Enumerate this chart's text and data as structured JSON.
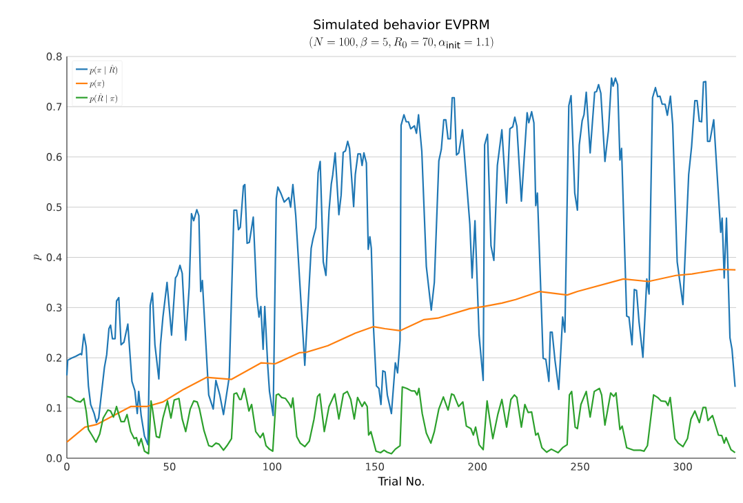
{
  "chart_data": {
    "type": "line",
    "title": "Simulated behavior EVPRM",
    "subtitle": "(N = 100, \\beta = 5, R_0 = 70, \\alpha_{\\mathrm{init}} = 1.1)",
    "xlabel": "Trial No.",
    "ylabel": "p",
    "xlim": [
      0,
      326
    ],
    "ylim": [
      0,
      0.8
    ],
    "xticks": [
      0,
      50,
      100,
      150,
      200,
      250,
      300
    ],
    "yticks": [
      {
        "value": 0,
        "label": "0.0"
      },
      0.1,
      0.2,
      0.3,
      0.4,
      0.5,
      0.6,
      0.7,
      0.8
    ],
    "grid": "y",
    "legend": "top left",
    "line_style": "solid",
    "marker": "none",
    "series": [
      {
        "name": "p(\\pi \\mid \\hat{R})",
        "color": "#1f77b4",
        "x": [
          0,
          0.4,
          2.1,
          4.4,
          6.6,
          7.2,
          8.3,
          9.4,
          10.5,
          11.6,
          13.3,
          14.4,
          15.5,
          18.3,
          19.4,
          20.5,
          21.3,
          22.2,
          23.5,
          24.2,
          25.3,
          26.4,
          27.8,
          29.7,
          31.7,
          33.1,
          34.3,
          35,
          36.2,
          37.8,
          39.5,
          40.6,
          41.7,
          42.9,
          44.8,
          45.6,
          46.8,
          48.8,
          51,
          52.9,
          53.7,
          55.1,
          56.2,
          57.9,
          59.6,
          60.7,
          61.8,
          63.3,
          64.3,
          65.2,
          66,
          69.1,
          71.3,
          72.6,
          74.5,
          76.3,
          79.1,
          81.4,
          82.7,
          83.6,
          84.5,
          86,
          86.7,
          87.8,
          88.9,
          90.8,
          92.5,
          93.6,
          94.5,
          95.6,
          96.4,
          97.9,
          98.7,
          100.5,
          102,
          102.8,
          104.2,
          105.9,
          108.1,
          109,
          110.1,
          111.5,
          115.9,
          119,
          119.9,
          121.3,
          122.4,
          123.4,
          124.9,
          126.2,
          127.7,
          128.8,
          129.5,
          130.7,
          132.5,
          133.6,
          134.6,
          135.7,
          136.8,
          137.7,
          139.7,
          140.5,
          141.8,
          143,
          143.8,
          144.7,
          145.9,
          146.8,
          147.6,
          148.3,
          149.4,
          150.8,
          152,
          153,
          153.9,
          155,
          156.1,
          158.1,
          160,
          161.1,
          162.3,
          162.8,
          164.2,
          165.3,
          166.4,
          167.5,
          169.3,
          170.3,
          171.3,
          172.9,
          175.1,
          177.5,
          179,
          181.2,
          182.4,
          183.6,
          184.6,
          185.7,
          186.8,
          187.7,
          188.7,
          189.8,
          190.9,
          192.7,
          196.3,
          197.4,
          198.8,
          200.8,
          202.8,
          203.5,
          204.9,
          206.6,
          208,
          209.7,
          211.9,
          214.2,
          215.8,
          217.2,
          218.2,
          219.2,
          221.4,
          224.2,
          225,
          226.4,
          227.5,
          228.4,
          229.2,
          232,
          233.3,
          234.8,
          235.5,
          236.4,
          237.8,
          239.6,
          241.5,
          242.6,
          244.5,
          245.6,
          247.4,
          248.7,
          249.6,
          251,
          251.9,
          253,
          254.9,
          257.1,
          258,
          259,
          260.1,
          262.1,
          263.8,
          265.3,
          266.1,
          267.2,
          268.3,
          269.4,
          270.2,
          272.7,
          273.8,
          275.3,
          276.4,
          277.5,
          278.7,
          280.6,
          282.5,
          283.6,
          285.3,
          286.7,
          287.8,
          288.9,
          290,
          291.4,
          292.5,
          294,
          295.1,
          297.3,
          300.1,
          302.9,
          304.3,
          305.9,
          307,
          308.1,
          309.2,
          310.1,
          311.2,
          312.1,
          313.2,
          315.1,
          318.5,
          319.2,
          320.2,
          321.3,
          323,
          324,
          325.5
        ],
        "values": [
          0.165,
          0.195,
          0.199,
          0.203,
          0.208,
          0.206,
          0.247,
          0.222,
          0.144,
          0.107,
          0.089,
          0.071,
          0.08,
          0.181,
          0.206,
          0.258,
          0.265,
          0.238,
          0.238,
          0.313,
          0.32,
          0.226,
          0.231,
          0.267,
          0.153,
          0.135,
          0.089,
          0.133,
          0.085,
          0.044,
          0.027,
          0.304,
          0.329,
          0.226,
          0.158,
          0.226,
          0.281,
          0.35,
          0.245,
          0.359,
          0.364,
          0.384,
          0.368,
          0.235,
          0.341,
          0.487,
          0.473,
          0.495,
          0.483,
          0.332,
          0.354,
          0.126,
          0.098,
          0.155,
          0.126,
          0.087,
          0.162,
          0.494,
          0.494,
          0.455,
          0.46,
          0.542,
          0.545,
          0.428,
          0.43,
          0.48,
          0.322,
          0.281,
          0.302,
          0.217,
          0.302,
          0.181,
          0.133,
          0.085,
          0.517,
          0.54,
          0.528,
          0.51,
          0.519,
          0.5,
          0.545,
          0.483,
          0.185,
          0.418,
          0.437,
          0.459,
          0.569,
          0.591,
          0.391,
          0.364,
          0.492,
          0.546,
          0.564,
          0.608,
          0.485,
          0.524,
          0.609,
          0.612,
          0.631,
          0.617,
          0.501,
          0.565,
          0.606,
          0.606,
          0.583,
          0.608,
          0.588,
          0.416,
          0.441,
          0.418,
          0.258,
          0.144,
          0.139,
          0.107,
          0.174,
          0.172,
          0.126,
          0.089,
          0.19,
          0.17,
          0.235,
          0.663,
          0.684,
          0.67,
          0.67,
          0.656,
          0.662,
          0.647,
          0.684,
          0.611,
          0.382,
          0.295,
          0.35,
          0.592,
          0.615,
          0.674,
          0.674,
          0.636,
          0.636,
          0.718,
          0.718,
          0.604,
          0.608,
          0.654,
          0.466,
          0.359,
          0.473,
          0.245,
          0.155,
          0.624,
          0.645,
          0.423,
          0.394,
          0.583,
          0.654,
          0.508,
          0.656,
          0.66,
          0.679,
          0.661,
          0.512,
          0.688,
          0.668,
          0.69,
          0.668,
          0.503,
          0.528,
          0.199,
          0.197,
          0.153,
          0.251,
          0.251,
          0.194,
          0.137,
          0.281,
          0.251,
          0.702,
          0.722,
          0.528,
          0.494,
          0.624,
          0.672,
          0.684,
          0.729,
          0.608,
          0.729,
          0.73,
          0.744,
          0.727,
          0.591,
          0.652,
          0.757,
          0.741,
          0.757,
          0.744,
          0.594,
          0.617,
          0.283,
          0.281,
          0.226,
          0.336,
          0.334,
          0.272,
          0.201,
          0.357,
          0.327,
          0.718,
          0.738,
          0.72,
          0.721,
          0.705,
          0.705,
          0.683,
          0.721,
          0.665,
          0.391,
          0.306,
          0.565,
          0.62,
          0.712,
          0.712,
          0.671,
          0.67,
          0.749,
          0.75,
          0.631,
          0.631,
          0.674,
          0.45,
          0.478,
          0.359,
          0.478,
          0.24,
          0.217,
          0.142
        ]
      },
      {
        "name": "p(\\pi)",
        "color": "#ff7f0e",
        "x": [
          0,
          8.8,
          14.4,
          31.1,
          38.9,
          46.8,
          56.8,
          68,
          80.2,
          94.7,
          101.4,
          104.8,
          113.2,
          116.6,
          127.1,
          140.5,
          149.4,
          154.9,
          162.3,
          174,
          180.7,
          196.3,
          203,
          211.9,
          218.6,
          230.3,
          243.7,
          248.7,
          271.1,
          283.3,
          296.7,
          304.5,
          317.9,
          325.7
        ],
        "values": [
          0.032,
          0.062,
          0.067,
          0.103,
          0.103,
          0.112,
          0.137,
          0.161,
          0.157,
          0.19,
          0.188,
          0.194,
          0.21,
          0.211,
          0.224,
          0.249,
          0.262,
          0.258,
          0.254,
          0.276,
          0.279,
          0.298,
          0.302,
          0.309,
          0.316,
          0.332,
          0.325,
          0.332,
          0.357,
          0.352,
          0.364,
          0.367,
          0.376,
          0.375
        ]
      },
      {
        "name": "p(\\hat{R} \\mid \\pi)",
        "color": "#2ca02c",
        "x": [
          0,
          2.1,
          4.4,
          6.6,
          8.3,
          9.4,
          10.5,
          12.2,
          14.2,
          16,
          17.7,
          20,
          21.3,
          22.7,
          24.2,
          25.3,
          26.4,
          28,
          29.3,
          31.1,
          32.8,
          33.9,
          35,
          36.2,
          37.8,
          39.8,
          41,
          41.7,
          43.6,
          45.1,
          46.8,
          49,
          50.7,
          52.3,
          54.6,
          56.2,
          57.9,
          60.1,
          61.8,
          63.5,
          64.6,
          66.8,
          69.1,
          70.7,
          72.6,
          74.1,
          76.3,
          78,
          80.2,
          81.4,
          82.7,
          84.2,
          84.9,
          86.4,
          87.6,
          88.7,
          90,
          92,
          94.2,
          95.6,
          97,
          98.7,
          100.3,
          102,
          103.1,
          104.6,
          106.5,
          108.1,
          109.3,
          110.1,
          112,
          113.7,
          115.9,
          118.1,
          120.4,
          122.1,
          123.2,
          125.4,
          127.7,
          130.5,
          132.5,
          134.7,
          136.6,
          138.3,
          140,
          141.6,
          143.8,
          145,
          146.3,
          147,
          148.1,
          150.6,
          152.8,
          154.5,
          156,
          158.1,
          160,
          162.3,
          163.4,
          165.6,
          167.9,
          169.5,
          170.6,
          171.5,
          173.1,
          175.1,
          177.3,
          179,
          181.2,
          183.4,
          185.7,
          187.4,
          188.5,
          190.8,
          192.9,
          194.6,
          196.8,
          198,
          199.1,
          200.8,
          202.8,
          204.7,
          205.9,
          207.5,
          209.9,
          211.9,
          214.2,
          216.3,
          218,
          219.2,
          221.4,
          223.1,
          224.7,
          226.4,
          228.4,
          229.5,
          231.4,
          233.7,
          236,
          239.3,
          241.5,
          243.7,
          244.8,
          245.9,
          247.6,
          248.7,
          250.4,
          253,
          254.9,
          256.9,
          259.4,
          260.5,
          262.1,
          264.9,
          266.4,
          267.5,
          269.4,
          270.5,
          272.7,
          276,
          279.4,
          281.1,
          282.8,
          285.8,
          287.8,
          289.5,
          291.7,
          292.8,
          293.9,
          296.2,
          297.8,
          300.1,
          302.3,
          304,
          305.9,
          308.1,
          309.9,
          311.2,
          312.3,
          314.5,
          317.4,
          319,
          320.2,
          321.1,
          323.5,
          325.5
        ],
        "values": [
          0.123,
          0.121,
          0.114,
          0.112,
          0.119,
          0.094,
          0.057,
          0.046,
          0.032,
          0.048,
          0.08,
          0.096,
          0.094,
          0.082,
          0.103,
          0.087,
          0.073,
          0.073,
          0.087,
          0.053,
          0.039,
          0.041,
          0.025,
          0.039,
          0.014,
          0.009,
          0.114,
          0.098,
          0.043,
          0.041,
          0.08,
          0.114,
          0.08,
          0.116,
          0.119,
          0.078,
          0.053,
          0.098,
          0.114,
          0.112,
          0.098,
          0.055,
          0.025,
          0.023,
          0.03,
          0.028,
          0.016,
          0.025,
          0.039,
          0.128,
          0.13,
          0.117,
          0.117,
          0.139,
          0.117,
          0.094,
          0.107,
          0.053,
          0.041,
          0.05,
          0.025,
          0.018,
          0.014,
          0.126,
          0.128,
          0.121,
          0.119,
          0.11,
          0.101,
          0.12,
          0.043,
          0.03,
          0.023,
          0.034,
          0.078,
          0.123,
          0.128,
          0.053,
          0.103,
          0.128,
          0.078,
          0.128,
          0.133,
          0.117,
          0.078,
          0.121,
          0.103,
          0.112,
          0.103,
          0.046,
          0.053,
          0.014,
          0.011,
          0.016,
          0.012,
          0.009,
          0.018,
          0.025,
          0.142,
          0.139,
          0.134,
          0.134,
          0.126,
          0.139,
          0.089,
          0.05,
          0.03,
          0.053,
          0.098,
          0.122,
          0.096,
          0.128,
          0.126,
          0.103,
          0.112,
          0.064,
          0.059,
          0.046,
          0.062,
          0.027,
          0.017,
          0.114,
          0.08,
          0.039,
          0.087,
          0.117,
          0.062,
          0.117,
          0.126,
          0.121,
          0.062,
          0.107,
          0.091,
          0.092,
          0.046,
          0.05,
          0.021,
          0.012,
          0.018,
          0.011,
          0.021,
          0.027,
          0.126,
          0.133,
          0.062,
          0.059,
          0.107,
          0.133,
          0.082,
          0.133,
          0.139,
          0.126,
          0.066,
          0.13,
          0.123,
          0.13,
          0.057,
          0.064,
          0.021,
          0.016,
          0.016,
          0.014,
          0.025,
          0.126,
          0.121,
          0.114,
          0.113,
          0.105,
          0.121,
          0.039,
          0.03,
          0.023,
          0.039,
          0.078,
          0.094,
          0.071,
          0.101,
          0.101,
          0.075,
          0.085,
          0.046,
          0.045,
          0.03,
          0.041,
          0.017,
          0.011
        ]
      }
    ]
  }
}
